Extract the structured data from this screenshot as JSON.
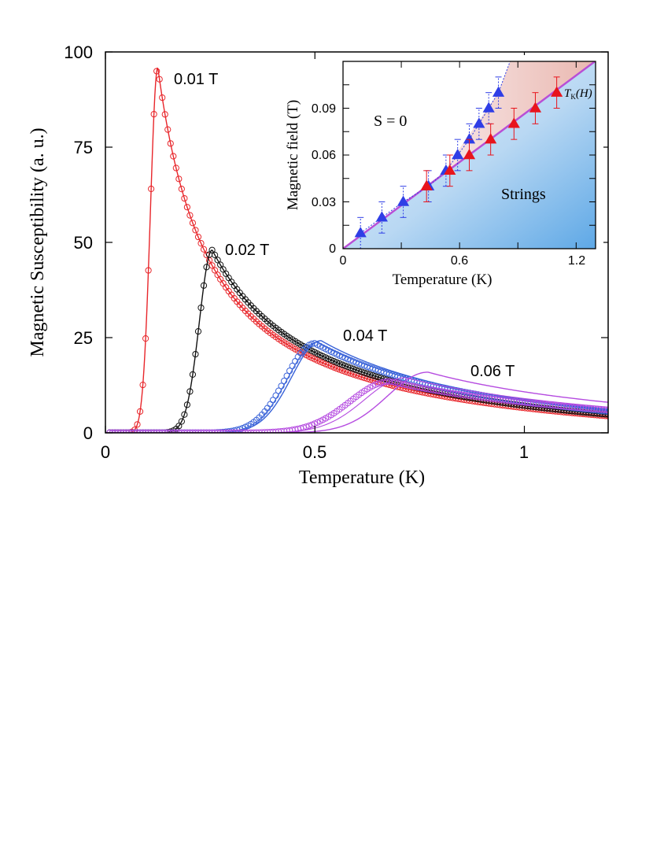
{
  "colors": {
    "red": "#e8262b",
    "black": "#111111",
    "blue": "#3a63d8",
    "violet": "#b54be0",
    "tri_blue": "#2f3ee6",
    "tri_red": "#e8141c",
    "line_violet": "#b84fd6"
  },
  "chart_data": [
    {
      "type": "line",
      "title": "",
      "xlabel": "Temperature (K)",
      "ylabel": "Magnetic Susceptibility (a. u.)",
      "xlim": [
        0,
        1.2
      ],
      "ylim": [
        0,
        100
      ],
      "x_ticks": [
        "0",
        "0.5",
        "1"
      ],
      "y_ticks": [
        "0",
        "25",
        "50",
        "75",
        "100"
      ],
      "series": [
        {
          "name": "0.01 T",
          "label": "0.01 T",
          "color": "red",
          "peak_T": 0.125,
          "peak_chi": 96,
          "rise_start": 0.05,
          "rise_width": 0.04,
          "tail_chi": 4.4,
          "model_width": 0.04,
          "model_shift": 0.0,
          "model_scale": 1.0
        },
        {
          "name": "0.02 T",
          "label": "0.02 T",
          "color": "black",
          "peak_T": 0.255,
          "peak_chi": 48,
          "rise_start": 0.14,
          "rise_width": 0.07,
          "tail_chi": 4.8,
          "model_width": 0.07,
          "model_shift": 0.0,
          "model_scale": 1.0
        },
        {
          "name": "0.04 T",
          "label": "0.04 T",
          "color": "blue",
          "peak_T": 0.5,
          "peak_chi": 23.5,
          "rise_start": 0.3,
          "rise_width": 0.16,
          "tail_chi": 5.6,
          "model_width": 0.16,
          "model_shift": 0.015,
          "model_scale": 1.03
        },
        {
          "name": "0.06 T",
          "label": "0.06 T",
          "color": "violet",
          "peak_T": 0.68,
          "peak_chi": 13.5,
          "rise_start": 0.4,
          "rise_width": 0.22,
          "tail_chi": 6.0,
          "model_width": 0.22,
          "model_shift": 0.09,
          "model_scale": 1.18
        }
      ]
    },
    {
      "type": "scatter",
      "title": "",
      "xlabel": "Temperature (K)",
      "ylabel": "Magnetic field (T)",
      "xlim": [
        0,
        1.3
      ],
      "ylim": [
        0,
        0.12
      ],
      "x_ticks": [
        "0",
        "0.6",
        "1.2"
      ],
      "y_ticks": [
        "0",
        "0.03",
        "0.06",
        "0.09"
      ],
      "regions": {
        "s0": "S = 0",
        "strings": "Strings"
      },
      "line_label": "T",
      "line_label_sub": "K",
      "line_label_suffix": "(H)",
      "line": {
        "slope": 0.0925
      },
      "series": [
        {
          "name": "blue",
          "color": "tri_blue",
          "x": [
            0.09,
            0.2,
            0.31,
            0.44,
            0.53,
            0.59,
            0.65,
            0.7,
            0.75,
            0.8
          ],
          "y": [
            0.01,
            0.02,
            0.03,
            0.04,
            0.05,
            0.06,
            0.07,
            0.08,
            0.09,
            0.1
          ],
          "err": [
            0.01,
            0.01,
            0.01,
            0.01,
            0.01,
            0.01,
            0.01,
            0.01,
            0.01,
            0.01
          ]
        },
        {
          "name": "red",
          "color": "tri_red",
          "x": [
            0.43,
            0.55,
            0.65,
            0.76,
            0.88,
            0.99,
            1.1
          ],
          "y": [
            0.04,
            0.05,
            0.06,
            0.07,
            0.08,
            0.09,
            0.1
          ],
          "err": [
            0.01,
            0.01,
            0.01,
            0.01,
            0.01,
            0.01,
            0.01
          ]
        }
      ]
    }
  ]
}
